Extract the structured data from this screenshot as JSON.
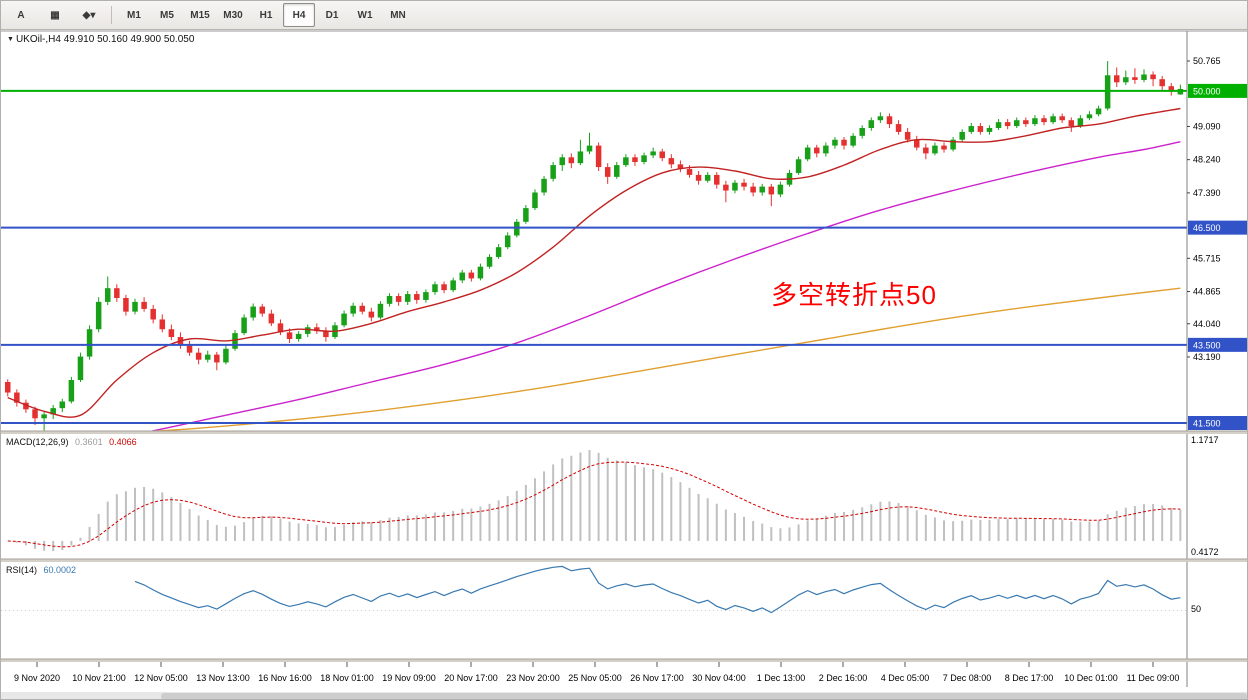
{
  "toolbar": {
    "tools": [
      {
        "id": "cursor-tool",
        "label": "A"
      },
      {
        "id": "chart-window-tool",
        "label": "▦"
      },
      {
        "id": "color-scheme-tool",
        "label": "◆▾"
      }
    ],
    "timeframes": [
      "M1",
      "M5",
      "M15",
      "M30",
      "H1",
      "H4",
      "D1",
      "W1",
      "MN"
    ],
    "selected_timeframe": "H4"
  },
  "chart": {
    "symbol_line": "UKOil-,H4 49.910 50.160 49.900 50.050",
    "annotation": {
      "text": "多空转折点50",
      "color": "#ff0000"
    },
    "price_axis_labels": [
      50.765,
      49.09,
      48.24,
      47.39,
      45.715,
      44.865,
      44.04,
      43.19
    ],
    "hlines": [
      {
        "value": 50.0,
        "label": "50.000",
        "color": "#00b000",
        "width": 2
      },
      {
        "value": 46.5,
        "label": "46.500",
        "color": "#3252c8",
        "width": 2
      },
      {
        "value": 43.5,
        "label": "43.500",
        "color": "#3252c8",
        "width": 2
      },
      {
        "value": 41.5,
        "label": "41.500",
        "color": "#3252c8",
        "width": 2
      }
    ]
  },
  "chart_data": {
    "type": "candlestick",
    "title": "UKOil-,H4",
    "symbol": "UKOil-",
    "timeframe": "H4",
    "ylim": [
      41.3,
      50.9
    ],
    "up_color": "#18a018",
    "down_color": "#e53030",
    "ohlc": [
      [
        42.55,
        42.62,
        42.18,
        42.28
      ],
      [
        42.28,
        42.36,
        41.92,
        42.02
      ],
      [
        42.02,
        42.1,
        41.76,
        41.85
      ],
      [
        41.85,
        41.92,
        41.45,
        41.62
      ],
      [
        41.62,
        41.8,
        41.3,
        41.72
      ],
      [
        41.72,
        41.96,
        41.6,
        41.88
      ],
      [
        41.88,
        42.12,
        41.78,
        42.05
      ],
      [
        42.05,
        42.68,
        42.0,
        42.6
      ],
      [
        42.6,
        43.3,
        42.55,
        43.2
      ],
      [
        43.2,
        44.0,
        43.12,
        43.9
      ],
      [
        43.9,
        44.72,
        43.82,
        44.6
      ],
      [
        44.6,
        45.25,
        44.52,
        44.95
      ],
      [
        44.95,
        45.05,
        44.6,
        44.7
      ],
      [
        44.7,
        44.78,
        44.25,
        44.35
      ],
      [
        44.35,
        44.68,
        44.28,
        44.6
      ],
      [
        44.6,
        44.72,
        44.35,
        44.42
      ],
      [
        44.42,
        44.52,
        44.05,
        44.15
      ],
      [
        44.15,
        44.28,
        43.82,
        43.9
      ],
      [
        43.9,
        44.02,
        43.62,
        43.7
      ],
      [
        43.7,
        43.82,
        43.4,
        43.48
      ],
      [
        43.48,
        43.6,
        43.22,
        43.3
      ],
      [
        43.3,
        43.42,
        43.0,
        43.12
      ],
      [
        43.12,
        43.35,
        43.05,
        43.25
      ],
      [
        43.25,
        43.32,
        42.85,
        43.05
      ],
      [
        43.05,
        43.48,
        43.0,
        43.4
      ],
      [
        43.4,
        43.88,
        43.35,
        43.8
      ],
      [
        43.8,
        44.28,
        43.75,
        44.2
      ],
      [
        44.2,
        44.56,
        44.12,
        44.48
      ],
      [
        44.48,
        44.55,
        44.22,
        44.3
      ],
      [
        44.3,
        44.4,
        43.98,
        44.05
      ],
      [
        44.05,
        44.15,
        43.75,
        43.82
      ],
      [
        43.82,
        43.92,
        43.55,
        43.65
      ],
      [
        43.65,
        43.85,
        43.58,
        43.78
      ],
      [
        43.78,
        44.02,
        43.7,
        43.95
      ],
      [
        43.95,
        44.05,
        43.78,
        43.85
      ],
      [
        43.85,
        43.95,
        43.58,
        43.7
      ],
      [
        43.7,
        44.08,
        43.65,
        44.0
      ],
      [
        44.0,
        44.38,
        43.95,
        44.3
      ],
      [
        44.3,
        44.58,
        44.22,
        44.5
      ],
      [
        44.5,
        44.58,
        44.28,
        44.35
      ],
      [
        44.35,
        44.45,
        44.1,
        44.2
      ],
      [
        44.2,
        44.62,
        44.15,
        44.55
      ],
      [
        44.55,
        44.82,
        44.48,
        44.75
      ],
      [
        44.75,
        44.82,
        44.5,
        44.6
      ],
      [
        44.6,
        44.88,
        44.52,
        44.8
      ],
      [
        44.8,
        44.88,
        44.55,
        44.65
      ],
      [
        44.65,
        44.92,
        44.58,
        44.85
      ],
      [
        44.85,
        45.12,
        44.78,
        45.05
      ],
      [
        45.05,
        45.12,
        44.82,
        44.9
      ],
      [
        44.9,
        45.22,
        44.85,
        45.15
      ],
      [
        45.15,
        45.42,
        45.08,
        45.35
      ],
      [
        45.35,
        45.42,
        45.12,
        45.2
      ],
      [
        45.2,
        45.58,
        45.15,
        45.5
      ],
      [
        45.5,
        45.82,
        45.45,
        45.75
      ],
      [
        45.75,
        46.08,
        45.7,
        46.0
      ],
      [
        46.0,
        46.38,
        45.95,
        46.3
      ],
      [
        46.3,
        46.72,
        46.25,
        46.65
      ],
      [
        46.65,
        47.08,
        46.6,
        47.0
      ],
      [
        47.0,
        47.48,
        46.95,
        47.4
      ],
      [
        47.4,
        47.82,
        47.32,
        47.75
      ],
      [
        47.75,
        48.18,
        47.68,
        48.1
      ],
      [
        48.1,
        48.38,
        47.95,
        48.3
      ],
      [
        48.3,
        48.4,
        48.02,
        48.15
      ],
      [
        48.15,
        48.75,
        48.1,
        48.45
      ],
      [
        48.45,
        48.93,
        48.38,
        48.6
      ],
      [
        48.6,
        48.68,
        47.95,
        48.05
      ],
      [
        48.05,
        48.15,
        47.62,
        47.8
      ],
      [
        47.8,
        48.18,
        47.75,
        48.1
      ],
      [
        48.1,
        48.38,
        48.05,
        48.3
      ],
      [
        48.3,
        48.38,
        48.08,
        48.18
      ],
      [
        48.18,
        48.42,
        48.12,
        48.35
      ],
      [
        48.35,
        48.55,
        48.28,
        48.45
      ],
      [
        48.45,
        48.52,
        48.2,
        48.28
      ],
      [
        48.28,
        48.38,
        48.02,
        48.12
      ],
      [
        48.12,
        48.22,
        47.92,
        48.0
      ],
      [
        48.0,
        48.1,
        47.78,
        47.85
      ],
      [
        47.85,
        47.95,
        47.6,
        47.7
      ],
      [
        47.7,
        47.92,
        47.65,
        47.85
      ],
      [
        47.85,
        47.92,
        47.5,
        47.6
      ],
      [
        47.6,
        47.7,
        47.15,
        47.45
      ],
      [
        47.45,
        47.72,
        47.38,
        47.65
      ],
      [
        47.65,
        47.75,
        47.45,
        47.55
      ],
      [
        47.55,
        47.65,
        47.3,
        47.4
      ],
      [
        47.4,
        47.62,
        47.32,
        47.55
      ],
      [
        47.55,
        47.62,
        47.05,
        47.35
      ],
      [
        47.35,
        47.68,
        47.28,
        47.6
      ],
      [
        47.6,
        47.98,
        47.55,
        47.9
      ],
      [
        47.9,
        48.32,
        47.85,
        48.25
      ],
      [
        48.25,
        48.62,
        48.2,
        48.55
      ],
      [
        48.55,
        48.62,
        48.3,
        48.4
      ],
      [
        48.4,
        48.68,
        48.32,
        48.6
      ],
      [
        48.6,
        48.82,
        48.52,
        48.75
      ],
      [
        48.75,
        48.82,
        48.5,
        48.6
      ],
      [
        48.6,
        48.92,
        48.55,
        48.85
      ],
      [
        48.85,
        49.12,
        48.78,
        49.05
      ],
      [
        49.05,
        49.32,
        48.98,
        49.25
      ],
      [
        49.25,
        49.45,
        49.18,
        49.35
      ],
      [
        49.35,
        49.42,
        49.05,
        49.15
      ],
      [
        49.15,
        49.25,
        48.88,
        48.95
      ],
      [
        48.95,
        49.05,
        48.68,
        48.75
      ],
      [
        48.75,
        48.85,
        48.48,
        48.55
      ],
      [
        48.55,
        48.65,
        48.25,
        48.4
      ],
      [
        48.4,
        48.68,
        48.35,
        48.6
      ],
      [
        48.6,
        48.68,
        48.42,
        48.5
      ],
      [
        48.5,
        48.82,
        48.45,
        48.75
      ],
      [
        48.75,
        49.02,
        48.7,
        48.95
      ],
      [
        48.95,
        49.18,
        48.9,
        49.1
      ],
      [
        49.1,
        49.18,
        48.88,
        48.95
      ],
      [
        48.95,
        49.12,
        48.88,
        49.05
      ],
      [
        49.05,
        49.28,
        49.0,
        49.2
      ],
      [
        49.2,
        49.28,
        49.02,
        49.1
      ],
      [
        49.1,
        49.32,
        49.05,
        49.25
      ],
      [
        49.25,
        49.32,
        49.08,
        49.15
      ],
      [
        49.15,
        49.38,
        49.1,
        49.3
      ],
      [
        49.3,
        49.38,
        49.12,
        49.2
      ],
      [
        49.2,
        49.42,
        49.15,
        49.35
      ],
      [
        49.35,
        49.42,
        49.18,
        49.25
      ],
      [
        49.25,
        49.32,
        48.95,
        49.1
      ],
      [
        49.1,
        49.38,
        49.05,
        49.3
      ],
      [
        49.3,
        49.48,
        49.25,
        49.4
      ],
      [
        49.4,
        49.62,
        49.35,
        49.55
      ],
      [
        49.55,
        50.765,
        49.5,
        50.4
      ],
      [
        50.4,
        50.6,
        50.1,
        50.22
      ],
      [
        50.22,
        50.52,
        50.15,
        50.35
      ],
      [
        50.35,
        50.58,
        50.18,
        50.28
      ],
      [
        50.28,
        50.55,
        50.22,
        50.42
      ],
      [
        50.42,
        50.5,
        50.12,
        50.3
      ],
      [
        50.3,
        50.38,
        49.98,
        50.12
      ],
      [
        50.12,
        50.2,
        49.88,
        49.98
      ],
      [
        49.91,
        50.16,
        49.9,
        50.05
      ]
    ],
    "time_labels": [
      "9 Nov 2020",
      "10 Nov 21:00",
      "12 Nov 05:00",
      "13 Nov 13:00",
      "16 Nov 16:00",
      "18 Nov 01:00",
      "19 Nov 09:00",
      "20 Nov 17:00",
      "23 Nov 20:00",
      "25 Nov 05:00",
      "26 Nov 17:00",
      "30 Nov 04:00",
      "1 Dec 13:00",
      "2 Dec 16:00",
      "4 Dec 05:00",
      "7 Dec 08:00",
      "8 Dec 17:00",
      "10 Dec 01:00",
      "11 Dec 09:00"
    ],
    "ma_lines": [
      {
        "name": "ma-fast-red",
        "color": "#c22222",
        "points": [
          [
            0,
            42.15
          ],
          [
            4,
            41.8
          ],
          [
            8,
            41.7
          ],
          [
            12,
            42.6
          ],
          [
            16,
            43.3
          ],
          [
            20,
            43.65
          ],
          [
            24,
            43.6
          ],
          [
            28,
            43.75
          ],
          [
            32,
            43.9
          ],
          [
            36,
            43.85
          ],
          [
            40,
            44.05
          ],
          [
            44,
            44.35
          ],
          [
            48,
            44.6
          ],
          [
            52,
            44.9
          ],
          [
            56,
            45.35
          ],
          [
            60,
            46.0
          ],
          [
            64,
            46.8
          ],
          [
            68,
            47.45
          ],
          [
            72,
            47.9
          ],
          [
            76,
            48.05
          ],
          [
            80,
            47.95
          ],
          [
            84,
            47.75
          ],
          [
            88,
            47.8
          ],
          [
            92,
            48.1
          ],
          [
            96,
            48.5
          ],
          [
            100,
            48.75
          ],
          [
            104,
            48.7
          ],
          [
            108,
            48.7
          ],
          [
            112,
            48.85
          ],
          [
            116,
            49.05
          ],
          [
            120,
            49.15
          ],
          [
            124,
            49.35
          ],
          [
            129,
            49.55
          ]
        ]
      },
      {
        "name": "ma-mid-magenta",
        "color": "#cc22cc",
        "points": [
          [
            0,
            40.7
          ],
          [
            8,
            40.95
          ],
          [
            16,
            41.3
          ],
          [
            24,
            41.7
          ],
          [
            32,
            42.1
          ],
          [
            40,
            42.55
          ],
          [
            48,
            43.0
          ],
          [
            56,
            43.55
          ],
          [
            64,
            44.25
          ],
          [
            72,
            45.0
          ],
          [
            80,
            45.7
          ],
          [
            88,
            46.35
          ],
          [
            96,
            46.95
          ],
          [
            104,
            47.45
          ],
          [
            112,
            47.9
          ],
          [
            120,
            48.3
          ],
          [
            125,
            48.5
          ],
          [
            129,
            48.7
          ]
        ]
      },
      {
        "name": "ma-slow-orange",
        "color": "#e0a030",
        "points": [
          [
            0,
            41.05
          ],
          [
            10,
            41.2
          ],
          [
            20,
            41.35
          ],
          [
            30,
            41.55
          ],
          [
            40,
            41.8
          ],
          [
            50,
            42.1
          ],
          [
            60,
            42.45
          ],
          [
            70,
            42.85
          ],
          [
            80,
            43.25
          ],
          [
            90,
            43.65
          ],
          [
            100,
            44.05
          ],
          [
            110,
            44.4
          ],
          [
            120,
            44.7
          ],
          [
            129,
            44.95
          ]
        ]
      }
    ],
    "indicators": {
      "macd": {
        "label": "MACD(12,26,9)",
        "main_value": "0.3601",
        "signal_value": "0.4066",
        "axis_max": "1.1717",
        "axis_min": "0.4172",
        "histogram_color": "#c0c0c0",
        "signal_color": "#d40000"
      },
      "rsi": {
        "label": "RSI(14)",
        "value": "60.0002",
        "color": "#3879b0",
        "level_label": "50"
      }
    }
  }
}
